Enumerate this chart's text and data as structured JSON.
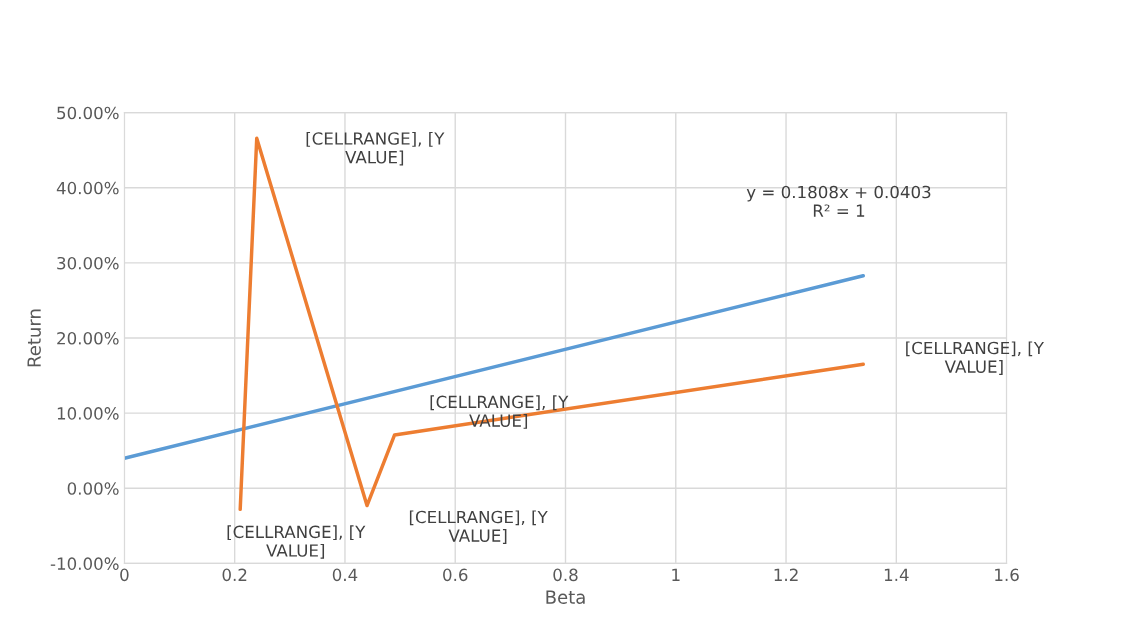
{
  "chart_data": {
    "type": "line",
    "xlabel": "Beta",
    "ylabel": "Return",
    "series": [
      {
        "color": "#5b9bd5",
        "x": [
          0,
          1.34
        ],
        "values": [
          4.0,
          28.3
        ]
      },
      {
        "color": "#ed7d31",
        "x": [
          0.21,
          0.24,
          0.44,
          0.49,
          1.34
        ],
        "values": [
          -2.8,
          46.6,
          -2.3,
          7.1,
          16.5
        ]
      }
    ],
    "annotations": [
      {
        "text": "[CELLRANGE], [Y\nVALUE]",
        "x": 0.21,
        "y": -2.8
      },
      {
        "text": "[CELLRANGE], [Y\nVALUE]",
        "x": 0.24,
        "y": 46.6
      },
      {
        "text": "[CELLRANGE], [Y\nVALUE]",
        "x": 0.44,
        "y": -2.3
      },
      {
        "text": "[CELLRANGE], [Y\nVALUE]",
        "x": 0.49,
        "y": 7.1
      },
      {
        "text": "[CELLRANGE], [Y\nVALUE]",
        "x": 1.34,
        "y": 16.5
      },
      "y = 0.1808x + 0.0403\nR² = 1"
    ],
    "xlim": [
      0,
      1.6
    ],
    "xticks": [
      0,
      0.2,
      0.4,
      0.6,
      0.8,
      1,
      1.2,
      1.4,
      1.6
    ],
    "ylim": [
      -10,
      50
    ],
    "yticks": [
      {
        "value": -10,
        "label": "-10.00%"
      },
      {
        "value": 0,
        "label": "0.00%"
      },
      {
        "value": 10,
        "label": "10.00%"
      },
      {
        "value": 20,
        "label": "20.00%"
      },
      {
        "value": 30,
        "label": "30.00%"
      },
      {
        "value": 40,
        "label": "40.00%"
      },
      {
        "value": 50,
        "label": "50.00%"
      }
    ],
    "grid": true,
    "marker": "none",
    "line_style": "solid",
    "legend": false
  }
}
